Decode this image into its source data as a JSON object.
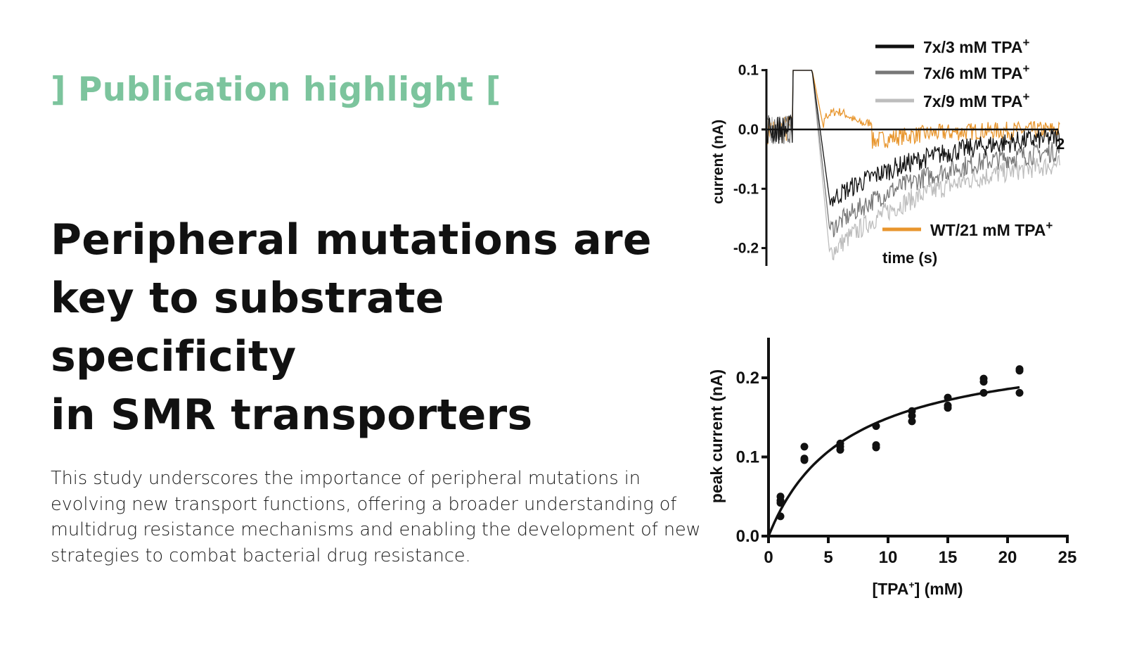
{
  "kicker": "] Publication highlight [",
  "headline": [
    "Peripheral mutations are",
    "key to substrate specificity",
    "in SMR transporters"
  ],
  "body": "This study underscores the importance of peripheral mutations in evolving new transport functions, offering a broader understanding of multidrug resistance mechanisms and enabling the development of new strategies to combat bacterial drug resistance.",
  "colors": {
    "accent": "#7cc49d",
    "wt": "#e8962e",
    "s3": "#111111",
    "s6": "#777777",
    "s9": "#bdbdbd"
  },
  "chart_data": [
    {
      "type": "line",
      "ylabel": "current (nA)",
      "xlabel": "time (s)",
      "ylim": [
        -0.2,
        0.1
      ],
      "yticks": [
        "0.1",
        "0.0",
        "-0.1",
        "-0.2"
      ],
      "xtick_partial": "2",
      "series": [
        {
          "name": "7x/3 mM TPA",
          "sup": "+",
          "peak": -0.12,
          "end": 0.0
        },
        {
          "name": "7x/6 mM TPA",
          "sup": "+",
          "peak": -0.17,
          "end": -0.02
        },
        {
          "name": "7x/9 mM TPA",
          "sup": "+",
          "peak": -0.21,
          "end": -0.04
        },
        {
          "name": "WT/21 mM TPA",
          "sup": "+",
          "peak": 0.02,
          "end": 0.0
        }
      ]
    },
    {
      "type": "scatter",
      "ylabel": "peak current (nA)",
      "xlabel": "[TPA",
      "xlabel_sup": "+",
      "xlabel_end": "] (mM)",
      "xlim": [
        0,
        25
      ],
      "ylim": [
        0,
        0.25
      ],
      "xticks": [
        "0",
        "5",
        "10",
        "15",
        "20",
        "25"
      ],
      "yticks": [
        "0.0",
        "0.1",
        "0.2"
      ],
      "points": [
        [
          1,
          0.05
        ],
        [
          1,
          0.045
        ],
        [
          1,
          0.042
        ],
        [
          1,
          0.025
        ],
        [
          3,
          0.113
        ],
        [
          3,
          0.098
        ],
        [
          3,
          0.096
        ],
        [
          6,
          0.117
        ],
        [
          6,
          0.113
        ],
        [
          6,
          0.109
        ],
        [
          9,
          0.139
        ],
        [
          9,
          0.115
        ],
        [
          9,
          0.112
        ],
        [
          12,
          0.158
        ],
        [
          12,
          0.152
        ],
        [
          12,
          0.145
        ],
        [
          15,
          0.175
        ],
        [
          15,
          0.165
        ],
        [
          15,
          0.162
        ],
        [
          18,
          0.199
        ],
        [
          18,
          0.195
        ],
        [
          18,
          0.181
        ],
        [
          21,
          0.211
        ],
        [
          21,
          0.209
        ],
        [
          21,
          0.181
        ]
      ],
      "fit": {
        "model": "michaelis-menten",
        "vmax": 0.2465,
        "km": 6.53,
        "x_range": [
          0,
          21
        ]
      }
    }
  ]
}
